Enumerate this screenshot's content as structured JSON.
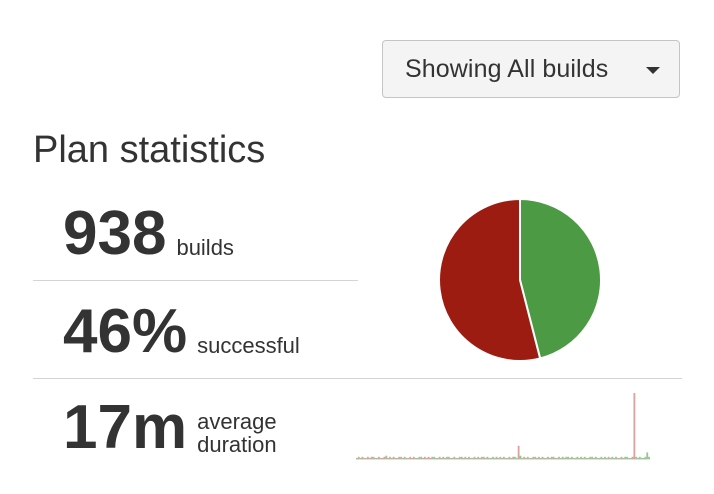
{
  "filter": {
    "label": "Showing All builds",
    "icon": "caret-down-icon"
  },
  "plan_statistics": {
    "title": "Plan statistics",
    "builds": {
      "value": "938",
      "label": "builds"
    },
    "successful": {
      "value": "46%",
      "label": "successful"
    },
    "duration": {
      "value": "17m",
      "label_line1": "average",
      "label_line2": "duration"
    }
  },
  "colors": {
    "success": "#4c9a43",
    "failure": "#9d1c12"
  },
  "chart_data": [
    {
      "type": "pie",
      "slices": [
        {
          "category": "successful",
          "value": 46,
          "color": "#4c9a43"
        },
        {
          "category": "failed",
          "value": 54,
          "color": "#9d1c12"
        }
      ]
    },
    {
      "type": "area",
      "description_series": [
        {
          "category": "successful",
          "color": "#4c9a43"
        },
        {
          "category": "failed",
          "color": "#9d1c12"
        }
      ],
      "values": [
        1,
        2,
        1,
        2,
        1,
        1,
        2,
        1,
        2,
        2,
        1,
        1,
        2,
        1,
        1,
        2,
        3,
        1,
        2,
        1,
        2,
        1,
        1,
        2,
        2,
        1,
        2,
        1,
        1,
        2,
        1,
        2,
        1,
        1,
        2,
        2,
        1,
        2,
        1,
        2,
        1,
        2,
        2,
        1,
        1,
        2,
        1,
        2,
        1,
        2,
        2,
        1,
        1,
        2,
        1,
        1,
        2,
        2,
        1,
        2,
        1,
        2,
        1,
        1,
        2,
        1,
        2,
        1,
        2,
        2,
        1,
        2,
        1,
        1,
        2,
        1,
        2,
        1,
        2,
        1,
        2,
        1,
        1,
        2,
        1,
        2,
        2,
        1,
        12,
        3,
        1,
        2,
        1,
        2,
        1,
        1,
        2,
        2,
        1,
        2,
        1,
        2,
        1,
        1,
        2,
        1,
        2,
        2,
        1,
        1,
        2,
        1,
        2,
        1,
        2,
        2,
        1,
        2,
        1,
        1,
        2,
        1,
        2,
        1,
        2,
        1,
        1,
        2,
        2,
        1,
        2,
        1,
        1,
        2,
        1,
        2,
        1,
        2,
        1,
        2,
        1,
        2,
        1,
        1,
        2,
        1,
        2,
        2,
        1,
        1,
        2,
        60,
        2,
        1,
        2,
        1,
        1,
        2,
        6,
        2
      ],
      "status": [
        "s",
        "f",
        "s",
        "f",
        "s",
        "f",
        "f",
        "s",
        "f",
        "s",
        "s",
        "f",
        "s",
        "f",
        "f",
        "s",
        "f",
        "s",
        "f",
        "s",
        "s",
        "f",
        "f",
        "s",
        "f",
        "s",
        "s",
        "f",
        "s",
        "f",
        "f",
        "s",
        "f",
        "s",
        "s",
        "f",
        "s",
        "f",
        "s",
        "f",
        "f",
        "s",
        "s",
        "f",
        "s",
        "f",
        "s",
        "s",
        "f",
        "s",
        "f",
        "s",
        "s",
        "f",
        "s",
        "f",
        "s",
        "s",
        "f",
        "s",
        "s",
        "f",
        "s",
        "s",
        "f",
        "s",
        "s",
        "f",
        "s",
        "s",
        "f",
        "s",
        "s",
        "f",
        "s",
        "s",
        "f",
        "s",
        "s",
        "f",
        "s",
        "s",
        "f",
        "s",
        "s",
        "f",
        "s",
        "s",
        "f",
        "s",
        "s",
        "f",
        "s",
        "s",
        "f",
        "s",
        "s",
        "f",
        "s",
        "s",
        "f",
        "s",
        "s",
        "f",
        "s",
        "s",
        "f",
        "s",
        "s",
        "s",
        "f",
        "s",
        "s",
        "f",
        "s",
        "s",
        "s",
        "f",
        "s",
        "s",
        "s",
        "f",
        "s",
        "s",
        "s",
        "f",
        "s",
        "s",
        "s",
        "f",
        "s",
        "s",
        "s",
        "f",
        "s",
        "s",
        "s",
        "f",
        "s",
        "s",
        "s",
        "f",
        "s",
        "s",
        "s",
        "f",
        "s",
        "s",
        "s",
        "s",
        "f",
        "f",
        "s",
        "s",
        "s",
        "s",
        "s",
        "s",
        "s",
        "s"
      ]
    }
  ]
}
